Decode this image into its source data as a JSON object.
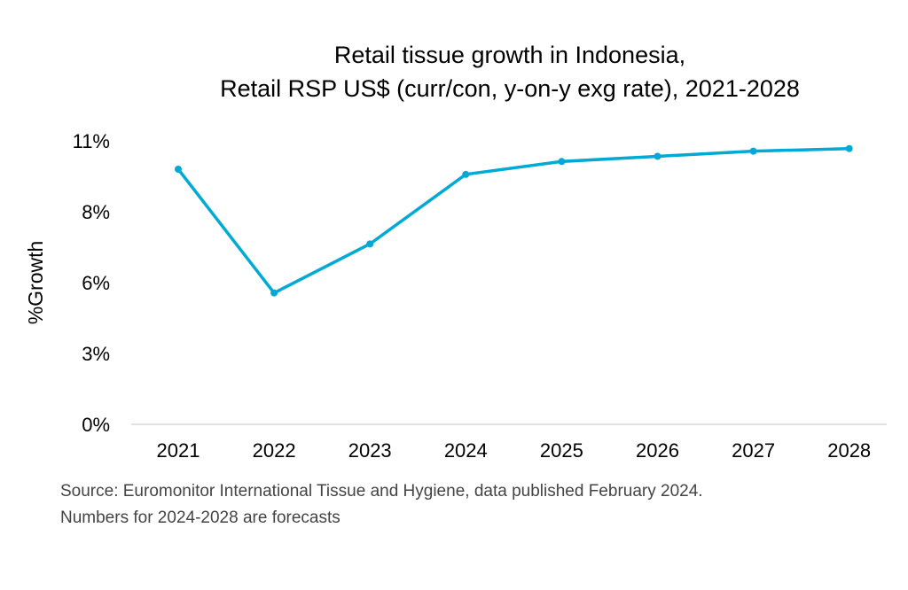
{
  "chart_data": {
    "type": "line",
    "title": "Retail tissue growth in Indonesia,",
    "subtitle": "Retail RSP US$ (curr/con, y-on-y exg rate), 2021-2028",
    "xlabel": "",
    "ylabel": "%Growth",
    "categories": [
      "2021",
      "2022",
      "2023",
      "2024",
      "2025",
      "2026",
      "2027",
      "2028"
    ],
    "series": [
      {
        "values": [
          9.9,
          5.1,
          7.0,
          9.7,
          10.2,
          10.4,
          10.6,
          10.7
        ],
        "color": "#00AAD4"
      }
    ],
    "ylim": [
      0,
      11
    ],
    "yticks": [
      0,
      2.75,
      5.5,
      8.25,
      11
    ],
    "ytick_labels": [
      "0%",
      "3%",
      "6%",
      "8%",
      "11%"
    ],
    "grid": false,
    "legend": "none",
    "source_lines": [
      "Source: Euromonitor International Tissue and Hygiene, data published February 2024.",
      "Numbers for 2024-2028 are forecasts"
    ]
  }
}
